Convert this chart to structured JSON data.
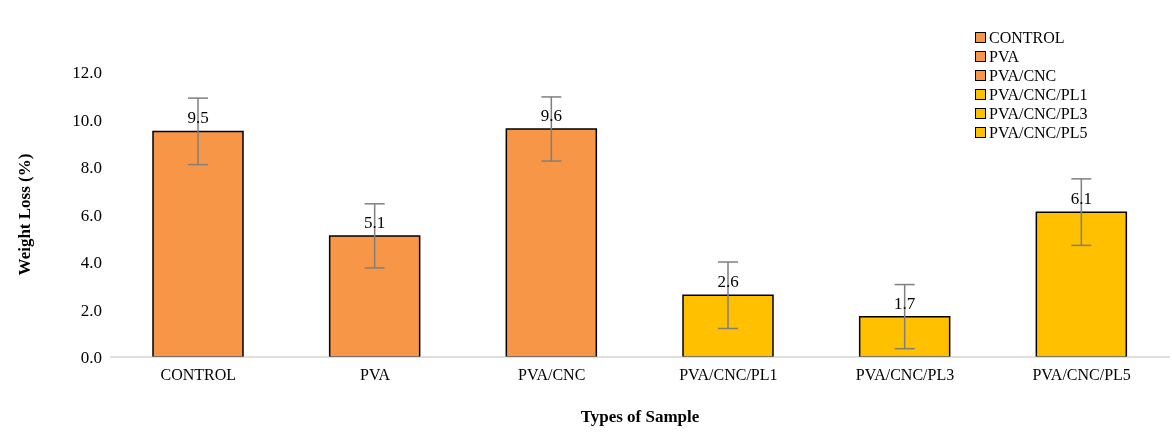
{
  "chart_data": {
    "type": "bar",
    "xlabel": "Types of Sample",
    "ylabel": "Weight Loss (%)",
    "categories": [
      "CONTROL",
      "PVA",
      "PVA/CNC",
      "PVA/CNC/PL1",
      "PVA/CNC/PL3",
      "PVA/CNC/PL5"
    ],
    "stacked": true,
    "series": [
      {
        "name": "CONTROL",
        "color": "#f79646",
        "values": [
          9.5,
          null,
          null,
          null,
          null,
          null
        ],
        "errors": [
          1.4,
          null,
          null,
          null,
          null,
          null
        ]
      },
      {
        "name": "PVA",
        "color": "#f79646",
        "values": [
          null,
          5.1,
          null,
          null,
          null,
          null
        ],
        "errors": [
          null,
          1.35,
          null,
          null,
          null,
          null
        ]
      },
      {
        "name": "PVA/CNC",
        "color": "#f79646",
        "values": [
          null,
          null,
          9.6,
          null,
          null,
          null
        ],
        "errors": [
          null,
          null,
          1.35,
          null,
          null,
          null
        ]
      },
      {
        "name": "PVA/CNC/PL1",
        "color": "#ffc000",
        "values": [
          null,
          null,
          null,
          2.6,
          null,
          null
        ],
        "errors": [
          null,
          null,
          null,
          1.4,
          null,
          null
        ]
      },
      {
        "name": "PVA/CNC/PL3",
        "color": "#ffc000",
        "values": [
          null,
          null,
          null,
          null,
          1.7,
          null
        ],
        "errors": [
          null,
          null,
          null,
          null,
          1.35,
          null
        ]
      },
      {
        "name": "PVA/CNC/PL5",
        "color": "#ffc000",
        "values": [
          null,
          null,
          null,
          null,
          null,
          6.1
        ],
        "errors": [
          null,
          null,
          null,
          null,
          null,
          1.4
        ]
      }
    ],
    "data_labels": true,
    "ylim": [
      0,
      12
    ],
    "yticks": [
      {
        "value": 0,
        "label": "0.0"
      },
      {
        "value": 2,
        "label": "2.0"
      },
      {
        "value": 4,
        "label": "4.0"
      },
      {
        "value": 6,
        "label": "6.0"
      },
      {
        "value": 8,
        "label": "8.0"
      },
      {
        "value": 10,
        "label": "10.0"
      },
      {
        "value": 12,
        "label": "12.0"
      }
    ],
    "legend": "top right"
  }
}
